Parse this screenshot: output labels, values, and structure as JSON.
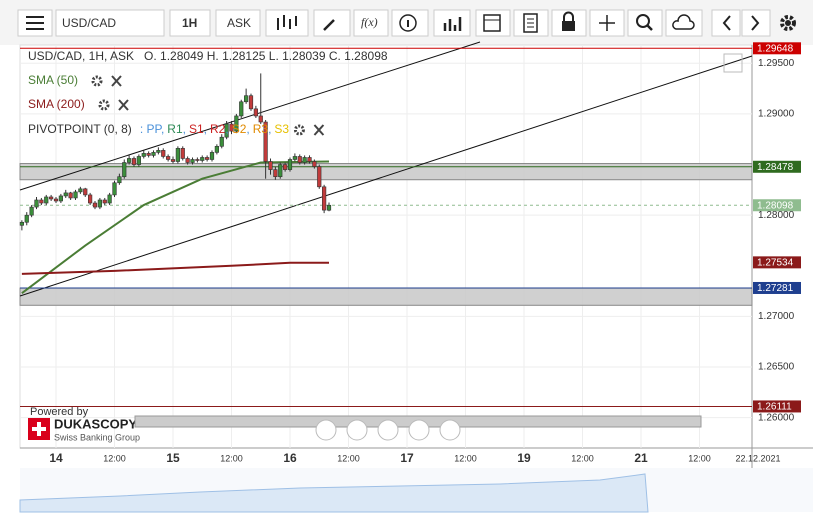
{
  "toolbar": {
    "symbol": "USD/CAD",
    "period": "1H",
    "side": "ASK",
    "fx": "f(x)"
  },
  "chart_data": {
    "type": "candlestick",
    "legend": "USD/CAD, 1H, ASK   O. 1.28049 H. 1.28125 L. 1.28039 C. 1.28098",
    "x": [
      "2021-12-13T17:00",
      "2021-12-13T18:00",
      "2021-12-13T19:00",
      "2021-12-13T20:00",
      "2021-12-13T21:00",
      "2021-12-13T22:00",
      "2021-12-13T23:00",
      "2021-12-14T00:00",
      "2021-12-14T01:00",
      "2021-12-14T02:00",
      "2021-12-14T03:00",
      "2021-12-14T04:00",
      "2021-12-14T05:00",
      "2021-12-14T06:00",
      "2021-12-14T07:00",
      "2021-12-14T08:00",
      "2021-12-14T09:00",
      "2021-12-14T10:00",
      "2021-12-14T11:00",
      "2021-12-14T12:00",
      "2021-12-14T13:00",
      "2021-12-14T14:00",
      "2021-12-14T15:00",
      "2021-12-14T16:00",
      "2021-12-14T17:00",
      "2021-12-14T18:00",
      "2021-12-14T19:00",
      "2021-12-14T20:00",
      "2021-12-14T21:00",
      "2021-12-14T22:00",
      "2021-12-14T23:00",
      "2021-12-15T00:00",
      "2021-12-15T01:00",
      "2021-12-15T02:00",
      "2021-12-15T03:00",
      "2021-12-15T04:00",
      "2021-12-15T05:00",
      "2021-12-15T06:00",
      "2021-12-15T07:00",
      "2021-12-15T08:00",
      "2021-12-15T09:00",
      "2021-12-15T10:00",
      "2021-12-15T11:00",
      "2021-12-15T12:00",
      "2021-12-15T13:00",
      "2021-12-15T14:00",
      "2021-12-15T15:00",
      "2021-12-15T16:00",
      "2021-12-15T17:00",
      "2021-12-15T18:00",
      "2021-12-15T19:00",
      "2021-12-15T20:00",
      "2021-12-15T21:00",
      "2021-12-15T22:00",
      "2021-12-15T23:00",
      "2021-12-16T00:00",
      "2021-12-16T01:00",
      "2021-12-16T02:00",
      "2021-12-16T03:00",
      "2021-12-16T04:00",
      "2021-12-16T05:00",
      "2021-12-16T06:00",
      "2021-12-16T07:00",
      "2021-12-16T08:00"
    ],
    "open": [
      1.279,
      1.2793,
      1.28,
      1.2808,
      1.2815,
      1.2812,
      1.2818,
      1.2816,
      1.2814,
      1.2819,
      1.2822,
      1.2817,
      1.2823,
      1.2826,
      1.282,
      1.2812,
      1.2808,
      1.2815,
      1.2812,
      1.282,
      1.2832,
      1.2838,
      1.2852,
      1.2856,
      1.285,
      1.2858,
      1.2861,
      1.2859,
      1.2862,
      1.2864,
      1.2858,
      1.2855,
      1.2853,
      1.2866,
      1.2856,
      1.2852,
      1.2855,
      1.2854,
      1.2857,
      1.2855,
      1.2862,
      1.2868,
      1.2877,
      1.289,
      1.2883,
      1.2898,
      1.2912,
      1.2918,
      1.2905,
      1.2898,
      1.2892,
      1.2853,
      1.2845,
      1.2838,
      1.285,
      1.2845,
      1.2855,
      1.2858,
      1.2852,
      1.2857,
      1.2853,
      1.2848,
      1.2828,
      1.28049
    ],
    "high": [
      1.2795,
      1.2803,
      1.281,
      1.2818,
      1.2817,
      1.282,
      1.282,
      1.2818,
      1.2821,
      1.2825,
      1.2823,
      1.2825,
      1.2828,
      1.2827,
      1.2822,
      1.2814,
      1.2817,
      1.2817,
      1.2822,
      1.2834,
      1.2841,
      1.2855,
      1.2859,
      1.2858,
      1.286,
      1.2864,
      1.2863,
      1.2864,
      1.2867,
      1.2866,
      1.286,
      1.2858,
      1.2868,
      1.2868,
      1.2858,
      1.2857,
      1.2857,
      1.2859,
      1.2859,
      1.2864,
      1.287,
      1.288,
      1.2893,
      1.2893,
      1.29,
      1.2914,
      1.2925,
      1.292,
      1.2908,
      1.294,
      1.2894,
      1.2856,
      1.2848,
      1.2852,
      1.2852,
      1.2857,
      1.2861,
      1.286,
      1.2859,
      1.2859,
      1.2855,
      1.285,
      1.283,
      1.28125
    ],
    "low": [
      1.2785,
      1.279,
      1.2798,
      1.2806,
      1.281,
      1.281,
      1.2814,
      1.2812,
      1.2812,
      1.2817,
      1.2815,
      1.2815,
      1.2821,
      1.2818,
      1.281,
      1.2806,
      1.2806,
      1.281,
      1.281,
      1.2818,
      1.283,
      1.2836,
      1.285,
      1.2848,
      1.2848,
      1.2856,
      1.2857,
      1.2857,
      1.286,
      1.2856,
      1.2853,
      1.2851,
      1.2851,
      1.2854,
      1.285,
      1.285,
      1.2852,
      1.2852,
      1.2853,
      1.2853,
      1.286,
      1.2866,
      1.2875,
      1.288,
      1.2881,
      1.2896,
      1.291,
      1.2903,
      1.2896,
      1.289,
      1.2836,
      1.284,
      1.2835,
      1.2836,
      1.2843,
      1.2843,
      1.2853,
      1.285,
      1.285,
      1.2851,
      1.2846,
      1.2826,
      1.2802,
      1.28039
    ],
    "close": [
      1.2793,
      1.28,
      1.2808,
      1.2815,
      1.2812,
      1.2818,
      1.2816,
      1.2814,
      1.2819,
      1.2822,
      1.2817,
      1.2823,
      1.2826,
      1.282,
      1.2812,
      1.2808,
      1.2815,
      1.2812,
      1.282,
      1.2832,
      1.2838,
      1.2852,
      1.2856,
      1.285,
      1.2858,
      1.2861,
      1.2859,
      1.2862,
      1.2864,
      1.2858,
      1.2855,
      1.2853,
      1.2866,
      1.2856,
      1.2852,
      1.2855,
      1.2854,
      1.2857,
      1.2855,
      1.2862,
      1.2868,
      1.2877,
      1.289,
      1.2883,
      1.2898,
      1.2912,
      1.2918,
      1.2905,
      1.2898,
      1.2892,
      1.2853,
      1.2845,
      1.2838,
      1.285,
      1.2845,
      1.2855,
      1.2858,
      1.2852,
      1.2857,
      1.2853,
      1.2848,
      1.2828,
      1.2805,
      1.28098
    ],
    "up_color": "#3b8e3b",
    "down_color": "#c23b3b",
    "indicators": [
      {
        "name": "SMA (50)",
        "color": "#4a7d35",
        "x": [
          "2021-12-13T17:00",
          "2021-12-14T06:00",
          "2021-12-14T18:00",
          "2021-12-15T06:00",
          "2021-12-15T18:00",
          "2021-12-16T08:00"
        ],
        "values": [
          1.2723,
          1.277,
          1.281,
          1.2836,
          1.2852,
          1.2853
        ]
      },
      {
        "name": "SMA (200)",
        "color": "#8b1a1a",
        "x": [
          "2021-12-13T17:00",
          "2021-12-14T12:00",
          "2021-12-15T12:00",
          "2021-12-16T00:00",
          "2021-12-16T08:00"
        ],
        "values": [
          1.2742,
          1.2745,
          1.275,
          1.2753,
          1.2753
        ]
      }
    ],
    "pivot": {
      "name": "PIVOTPOINT (0, 8)",
      "prefix": ": ",
      "items": [
        {
          "name": "PP",
          "color": "#4a90d9"
        },
        {
          "name": "R1",
          "color": "#2e8b57"
        },
        {
          "name": "S1",
          "color": "#cc2222"
        },
        {
          "name": "R2",
          "color": "#cc2222"
        },
        {
          "name": "S2",
          "color": "#e08a00"
        },
        {
          "name": "R3",
          "color": "#e08a00"
        },
        {
          "name": "S3",
          "color": "#e6c000"
        }
      ]
    },
    "zones": [
      [
        1.2835,
        1.2851
      ],
      [
        1.2711,
        1.2728
      ]
    ],
    "levels": [
      {
        "value": 1.29648,
        "color": "#cc0000",
        "line": "solid"
      },
      {
        "value": 1.28478,
        "color": "#2f6b1f",
        "line": "solid"
      },
      {
        "value": 1.28098,
        "color": "#8fbc8f",
        "line": "dash"
      },
      {
        "value": 1.27534,
        "color": "#8b1a1a",
        "line": "none"
      },
      {
        "value": 1.27281,
        "color": "#1f3f8f",
        "line": "solid"
      },
      {
        "value": 1.26111,
        "color": "#8b1a1a",
        "line": "solid"
      }
    ],
    "ylim": [
      1.2575,
      1.2973
    ],
    "yticks": [
      {
        "value": 1.295,
        "label": "1.29500"
      },
      {
        "value": 1.29,
        "label": "1.29000"
      },
      {
        "value": 1.28,
        "label": "1.28000"
      },
      {
        "value": 1.27,
        "label": "1.27000"
      },
      {
        "value": 1.265,
        "label": "1.26500"
      },
      {
        "value": 1.26,
        "label": "1.26000"
      }
    ],
    "xticks": [
      {
        "value": "2021-12-14T00:00",
        "label": "14"
      },
      {
        "value": "2021-12-14T12:00",
        "label": "12:00"
      },
      {
        "value": "2021-12-15T00:00",
        "label": "15"
      },
      {
        "value": "2021-12-15T12:00",
        "label": "12:00"
      },
      {
        "value": "2021-12-16T00:00",
        "label": "16"
      },
      {
        "value": "2021-12-16T12:00",
        "label": "12:00"
      },
      {
        "value": "2021-12-17T00:00",
        "label": "17"
      },
      {
        "value": "2021-12-17T12:00",
        "label": "12:00"
      },
      {
        "value": "2021-12-19T00:00",
        "label": "19"
      },
      {
        "value": "2021-12-19T12:00",
        "label": "12:00"
      },
      {
        "value": "2021-12-21T00:00",
        "label": "21"
      },
      {
        "value": "2021-12-21T12:00",
        "label": "12:00"
      },
      {
        "value": "2021-12-22T00:00",
        "label": "22.12.2021"
      }
    ],
    "grid": true,
    "branding": {
      "powered": "Powered by",
      "brand": "DUKASCOPY",
      "sub": "Swiss Banking Group"
    }
  }
}
